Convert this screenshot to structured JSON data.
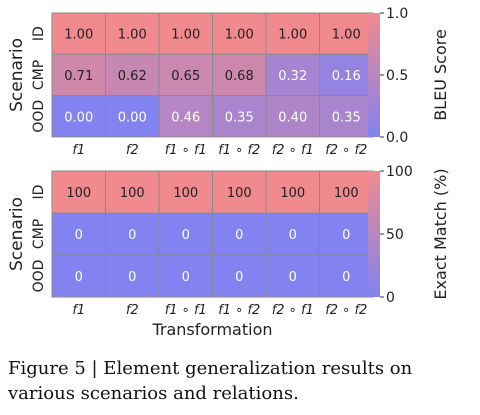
{
  "chart_data": [
    {
      "type": "heatmap",
      "ylabel": "Scenario",
      "rows": [
        "ID",
        "CMP",
        "OOD"
      ],
      "columns": [
        "f1",
        "f2",
        "f1 ∘ f1",
        "f1 ∘ f2",
        "f2 ∘ f1",
        "f2 ∘ f2"
      ],
      "values": [
        [
          1.0,
          1.0,
          1.0,
          1.0,
          1.0,
          1.0
        ],
        [
          0.71,
          0.62,
          0.65,
          0.68,
          0.32,
          0.16
        ],
        [
          0.0,
          0.0,
          0.46,
          0.35,
          0.4,
          0.35
        ]
      ],
      "value_labels": [
        [
          "1.00",
          "1.00",
          "1.00",
          "1.00",
          "1.00",
          "1.00"
        ],
        [
          "0.71",
          "0.62",
          "0.65",
          "0.68",
          "0.32",
          "0.16"
        ],
        [
          "0.00",
          "0.00",
          "0.46",
          "0.35",
          "0.40",
          "0.35"
        ]
      ],
      "colorbar": {
        "label": "BLEU Score",
        "range": [
          0.0,
          1.0
        ],
        "ticks": [
          "0.0",
          "0.5",
          "1.0"
        ]
      }
    },
    {
      "type": "heatmap",
      "ylabel": "Scenario",
      "xlabel": "Transformation",
      "rows": [
        "ID",
        "CMP",
        "OOD"
      ],
      "columns": [
        "f1",
        "f2",
        "f1 ∘ f1",
        "f1 ∘ f2",
        "f2 ∘ f1",
        "f2 ∘ f2"
      ],
      "values": [
        [
          100,
          100,
          100,
          100,
          100,
          100
        ],
        [
          0,
          0,
          0,
          0,
          0,
          0
        ],
        [
          0,
          0,
          0,
          0,
          0,
          0
        ]
      ],
      "value_labels": [
        [
          "100",
          "100",
          "100",
          "100",
          "100",
          "100"
        ],
        [
          "0",
          "0",
          "0",
          "0",
          "0",
          "0"
        ],
        [
          "0",
          "0",
          "0",
          "0",
          "0",
          "0"
        ]
      ],
      "colorbar": {
        "label": "Exact Match (%)",
        "range": [
          0,
          100
        ],
        "ticks": [
          "0",
          "50",
          "100"
        ]
      }
    }
  ],
  "colormap": {
    "low": "#8282f0",
    "high": "#f08a8e"
  },
  "caption": "Figure 5 | Element generalization results on various scenarios and relations."
}
